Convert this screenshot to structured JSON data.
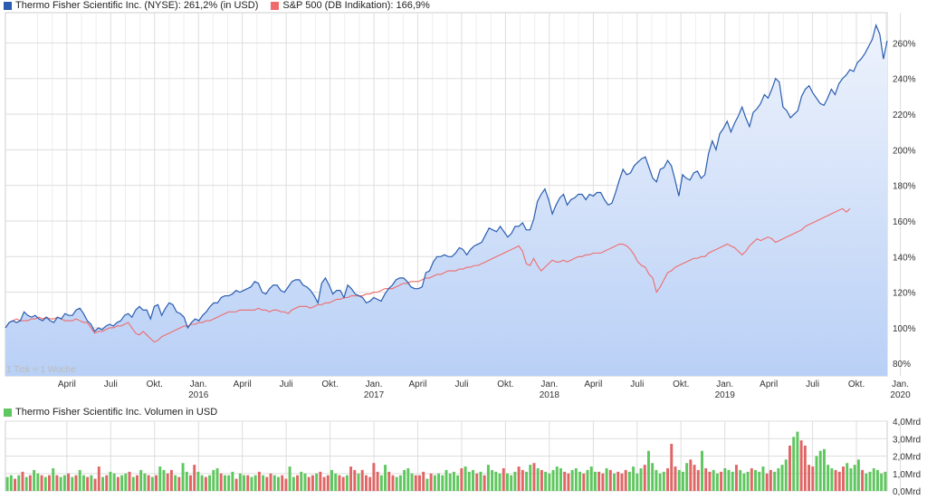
{
  "legend": {
    "main": [
      {
        "label": "Thermo Fisher Scientific Inc. (NYSE): 261,2% (in USD)",
        "color": "#2a5db0"
      },
      {
        "label": "S&P 500 (DB Indikation): 166,9%",
        "color": "#f06b6b"
      }
    ],
    "volume": {
      "label": "Thermo Fisher Scientific Inc. Volumen in USD",
      "color": "#5fc75f"
    }
  },
  "tick_note": "1 Tick = 1 Woche",
  "colors": {
    "tmo_line": "#2a5db0",
    "tmo_fill_top": "#eef3fc",
    "tmo_fill_bottom": "#b9d0f6",
    "spx_line": "#f06b6b",
    "vol_up": "#5fc75f",
    "vol_down": "#e06666",
    "grid": "#dddddd"
  },
  "chart_data": [
    {
      "type": "line",
      "x_axis": {
        "labels": [
          "April",
          "Juli",
          "Okt.",
          "Jan.",
          "April",
          "Juli",
          "Okt.",
          "Jan.",
          "April",
          "Juli",
          "Okt.",
          "Jan.",
          "April",
          "Juli",
          "Okt.",
          "Jan.",
          "April",
          "Juli",
          "Okt.",
          "Jan."
        ],
        "years": [
          {
            "label": "2016",
            "under": 3
          },
          {
            "label": "2017",
            "under": 7
          },
          {
            "label": "2018",
            "under": 11
          },
          {
            "label": "2019",
            "under": 15
          },
          {
            "label": "2020",
            "under": 19
          }
        ]
      },
      "y_ticks": [
        "80%",
        "100%",
        "120%",
        "140%",
        "160%",
        "180%",
        "200%",
        "220%",
        "240%",
        "260%"
      ],
      "y_tick_values": [
        80,
        100,
        120,
        140,
        160,
        180,
        200,
        220,
        240,
        260
      ],
      "ylim": [
        73,
        277
      ],
      "grid": true,
      "legend_position": "top-left",
      "series": [
        {
          "name": "Thermo Fisher Scientific Inc. (NYSE): 261,2% (in USD)",
          "values": [
            100,
            103,
            104,
            103,
            104,
            109,
            107,
            106,
            107,
            105,
            104,
            106,
            104,
            103,
            106,
            105,
            108,
            107,
            107,
            110,
            111,
            108,
            104,
            102,
            98,
            100,
            99,
            101,
            102,
            101,
            103,
            104,
            107,
            108,
            106,
            110,
            112,
            110,
            110,
            105,
            112,
            113,
            107,
            111,
            114,
            113,
            109,
            108,
            106,
            100,
            103,
            105,
            104,
            107,
            109,
            112,
            114,
            114,
            117,
            118,
            118,
            119,
            121,
            120,
            121,
            122,
            123,
            126,
            125,
            120,
            119,
            122,
            124,
            124,
            121,
            120,
            123,
            126,
            127,
            127,
            124,
            123,
            121,
            118,
            114,
            125,
            128,
            124,
            119,
            121,
            121,
            117,
            124,
            122,
            119,
            118,
            117,
            114,
            115,
            117,
            116,
            115,
            119,
            122,
            124,
            127,
            128,
            128,
            126,
            123,
            122,
            122,
            123,
            131,
            132,
            137,
            140,
            140,
            141,
            140,
            140,
            142,
            145,
            144,
            141,
            144,
            146,
            147,
            148,
            152,
            156,
            155,
            154,
            157,
            154,
            151,
            153,
            157,
            157,
            159,
            155,
            155,
            161,
            171,
            175,
            178,
            172,
            164,
            169,
            173,
            175,
            169,
            172,
            173,
            175,
            175,
            172,
            175,
            174,
            176,
            176,
            172,
            169,
            170,
            176,
            183,
            189,
            186,
            187,
            191,
            193,
            195,
            196,
            190,
            184,
            182,
            189,
            190,
            194,
            191,
            183,
            174,
            186,
            184,
            183,
            187,
            188,
            184,
            186,
            198,
            205,
            200,
            209,
            212,
            216,
            210,
            215,
            219,
            224,
            218,
            213,
            221,
            223,
            226,
            231,
            229,
            234,
            240,
            238,
            224,
            222,
            218,
            220,
            222,
            230,
            234,
            236,
            232,
            229,
            226,
            225,
            229,
            234,
            231,
            237,
            240,
            242,
            245,
            244,
            249,
            251,
            254,
            258,
            262,
            270,
            265,
            251,
            261.2
          ]
        },
        {
          "name": "S&P 500 (DB Indikation): 166,9%",
          "values": [
            100,
            103,
            104,
            105,
            104,
            104,
            104,
            105,
            105,
            106,
            105,
            106,
            105,
            105,
            106,
            105,
            104,
            104,
            104,
            105,
            104,
            103,
            103,
            100,
            97,
            98,
            98,
            99,
            100,
            100,
            101,
            101,
            102,
            103,
            100,
            97,
            96,
            98,
            96,
            94,
            92,
            93,
            95,
            96,
            97,
            98,
            99,
            100,
            101,
            101,
            102,
            102,
            103,
            103,
            104,
            104,
            105,
            106,
            107,
            108,
            109,
            109,
            109,
            110,
            110,
            110,
            110,
            110,
            111,
            110,
            110,
            109,
            110,
            110,
            109,
            109,
            108,
            110,
            111,
            112,
            112,
            112,
            111,
            112,
            113,
            113,
            114,
            114,
            115,
            116,
            116,
            117,
            117,
            118,
            118,
            118,
            118,
            119,
            119,
            120,
            120,
            121,
            122,
            122,
            122,
            123,
            124,
            125,
            125,
            126,
            126,
            126,
            127,
            128,
            128,
            129,
            130,
            130,
            131,
            132,
            132,
            132,
            133,
            133,
            134,
            134,
            135,
            135,
            136,
            137,
            138,
            139,
            140,
            141,
            142,
            143,
            144,
            145,
            146,
            143,
            136,
            135,
            139,
            135,
            132,
            134,
            136,
            138,
            137,
            137,
            138,
            137,
            138,
            139,
            140,
            140,
            141,
            141,
            142,
            142,
            142,
            143,
            144,
            145,
            146,
            147,
            147,
            146,
            144,
            141,
            137,
            135,
            134,
            130,
            128,
            120,
            123,
            127,
            131,
            132,
            134,
            135,
            136,
            137,
            138,
            139,
            139,
            140,
            140,
            142,
            143,
            144,
            145,
            146,
            147,
            146,
            145,
            143,
            141,
            143,
            146,
            148,
            150,
            149,
            150,
            151,
            150,
            148,
            149,
            150,
            151,
            152,
            153,
            154,
            155,
            157,
            158,
            159,
            160,
            161,
            162,
            163,
            164,
            165,
            166,
            167,
            165,
            166.9
          ]
        }
      ]
    },
    {
      "type": "bar",
      "title": "Thermo Fisher Scientific Inc. Volumen in USD",
      "y_ticks": [
        "0,0Mrd",
        "1,0Mrd",
        "2,0Mrd",
        "3,0Mrd",
        "4,0Mrd"
      ],
      "y_tick_values": [
        0,
        1,
        2,
        3,
        4
      ],
      "ylim": [
        0,
        4
      ],
      "volumes": [
        0.8,
        0.9,
        0.7,
        0.9,
        1.1,
        0.8,
        0.9,
        1.2,
        1.0,
        0.9,
        0.8,
        0.9,
        1.3,
        0.9,
        0.8,
        0.9,
        1.0,
        0.8,
        0.9,
        1.2,
        0.9,
        0.8,
        0.9,
        0.7,
        1.4,
        0.8,
        0.9,
        1.1,
        1.0,
        0.8,
        0.9,
        1.0,
        1.1,
        0.8,
        0.9,
        1.2,
        1.0,
        0.9,
        0.8,
        0.9,
        1.4,
        1.2,
        1.0,
        1.2,
        0.9,
        0.8,
        1.6,
        1.1,
        0.9,
        1.5,
        1.1,
        0.9,
        0.8,
        0.9,
        1.2,
        1.3,
        1.0,
        0.9,
        0.9,
        1.1,
        0.7,
        1.0,
        0.9,
        0.9,
        0.8,
        0.9,
        1.1,
        0.9,
        0.8,
        1.0,
        0.9,
        0.8,
        0.9,
        0.7,
        1.4,
        0.8,
        0.9,
        1.1,
        1.0,
        0.8,
        0.9,
        1.0,
        1.1,
        0.8,
        0.9,
        1.2,
        1.0,
        0.9,
        0.8,
        0.9,
        1.4,
        1.2,
        1.0,
        1.2,
        0.9,
        0.8,
        1.6,
        1.1,
        0.9,
        1.5,
        1.1,
        0.9,
        0.8,
        0.9,
        1.2,
        1.3,
        1.0,
        0.9,
        0.9,
        1.1,
        0.7,
        1.0,
        0.9,
        1.0,
        0.9,
        1.2,
        1.0,
        1.1,
        0.9,
        1.3,
        1.4,
        1.1,
        1.2,
        1.0,
        1.1,
        0.9,
        1.5,
        1.2,
        1.1,
        1.0,
        1.3,
        1.0,
        0.9,
        1.1,
        1.4,
        1.2,
        1.1,
        1.5,
        1.6,
        1.3,
        1.2,
        1.1,
        1.0,
        1.2,
        1.4,
        1.3,
        1.1,
        1.0,
        1.2,
        1.3,
        1.1,
        1.0,
        1.2,
        1.4,
        1.1,
        1.1,
        1.0,
        1.3,
        1.2,
        1.0,
        1.1,
        1.0,
        1.2,
        1.1,
        1.4,
        1.0,
        1.3,
        1.5,
        2.3,
        1.6,
        1.2,
        1.0,
        1.1,
        1.3,
        2.7,
        1.4,
        1.2,
        1.1,
        1.6,
        1.8,
        1.5,
        1.2,
        2.3,
        1.3,
        1.1,
        1.2,
        1.0,
        1.1,
        1.3,
        1.2,
        1.1,
        1.5,
        1.2,
        1.0,
        1.1,
        1.3,
        1.2,
        1.1,
        1.4,
        1.0,
        1.2,
        1.1,
        1.3,
        1.5,
        1.8,
        2.6,
        3.1,
        3.4,
        2.9,
        2.6,
        1.5,
        1.4,
        2.0,
        2.3,
        2.4,
        1.5,
        1.3,
        1.2,
        1.1,
        1.4,
        1.6,
        1.3,
        1.5,
        1.8,
        1.2,
        1.0,
        1.1,
        1.3,
        1.2,
        1.0,
        1.1
      ],
      "direction": [
        1,
        1,
        0,
        1,
        0,
        1,
        0,
        1,
        1,
        0,
        1,
        0,
        1,
        0,
        1,
        1,
        0,
        1,
        0,
        1,
        1,
        0,
        1,
        0,
        0,
        1,
        0,
        1,
        1,
        0,
        1,
        1,
        0,
        1,
        0,
        1,
        1,
        0,
        1,
        0,
        1,
        1,
        0,
        0,
        1,
        0,
        1,
        1,
        0,
        0,
        1,
        1,
        0,
        1,
        1,
        1,
        0,
        1,
        1,
        1,
        0,
        1,
        1,
        0,
        1,
        1,
        0,
        1,
        0,
        0,
        1,
        1,
        0,
        0,
        1,
        1,
        0,
        1,
        1,
        0,
        0,
        1,
        0,
        0,
        0,
        1,
        1,
        0,
        0,
        1,
        0,
        0,
        1,
        0,
        0,
        0,
        0,
        0,
        1,
        1,
        0,
        0,
        1,
        1,
        1,
        1,
        1,
        0,
        0,
        0,
        1,
        0,
        1,
        1,
        1,
        1,
        1,
        1,
        1,
        0,
        1,
        1,
        1,
        0,
        1,
        0,
        1,
        1,
        1,
        1,
        0,
        1,
        1,
        1,
        0,
        0,
        1,
        1,
        0,
        1,
        0,
        1,
        1,
        1,
        1,
        1,
        0,
        0,
        1,
        1,
        1,
        0,
        1,
        1,
        1,
        0,
        0,
        1,
        0,
        1,
        0,
        0,
        0,
        1,
        1,
        1,
        1,
        0,
        1,
        1,
        1,
        1,
        1,
        0,
        0,
        0,
        1,
        1,
        1,
        0,
        0,
        0,
        1,
        0,
        0,
        1,
        1,
        0,
        1,
        1,
        1,
        0,
        1,
        1,
        1,
        0,
        1,
        1,
        1,
        0,
        0,
        1,
        1,
        1,
        1,
        0,
        1,
        1,
        0,
        0,
        0,
        0,
        1,
        1,
        1,
        1,
        1,
        0,
        0,
        0,
        1,
        1,
        1,
        1,
        0,
        1,
        1,
        1,
        1,
        1,
        1,
        0,
        0,
        1
      ]
    }
  ]
}
